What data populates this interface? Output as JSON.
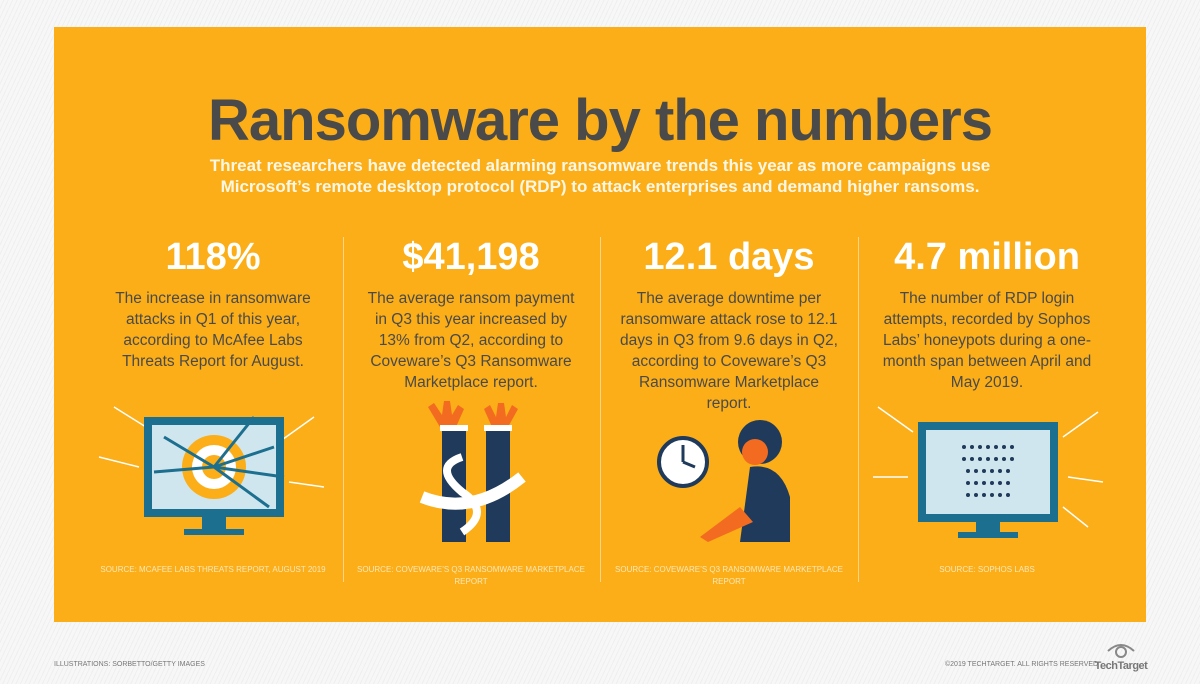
{
  "title": "Ransomware by the numbers",
  "subtitle": "Threat researchers have detected alarming ransomware trends this year as more campaigns use Microsoft’s remote desktop protocol (RDP) to attack enterprises and demand higher ransoms.",
  "colors": {
    "background": "#fbae17",
    "title": "#4a4a4a",
    "accent_blue": "#1d6f8f"
  },
  "stats": [
    {
      "value": "118%",
      "description": "The increase in ransomware attacks in Q1 of this year, according to McAfee Labs Threats Report for August.",
      "source": "Source: McAfee Labs Threats Report, August 2019",
      "icon": "monitor-target-arrows-icon"
    },
    {
      "value": "$41,198",
      "description": "The average ransom payment in Q3 this year increased by 13% from Q2, according to Coveware’s Q3 Ransomware Marketplace report.",
      "source": "Source: Coveware’s Q3 Ransomware Marketplace Report",
      "icon": "handcuffed-hands-dollar-icon"
    },
    {
      "value": "12.1 days",
      "description": "The average downtime per ransomware attack rose to 12.1 days in Q3 from 9.6 days in Q2, according to Coveware’s Q3 Ransomware Marketplace report.",
      "source": "Source: Coveware’s Q3 Ransomware Marketplace Report",
      "icon": "clock-waiting-person-icon"
    },
    {
      "value": "4.7 million",
      "description": "The number of RDP login attempts, recorded by Sophos Labs’ honeypots during a one-month span between April and May 2019.",
      "source": "Source: Sophos Labs",
      "icon": "monitor-password-dots-icon"
    }
  ],
  "footer": {
    "credit": "ILLUSTRATIONS: SORBETTO/GETTY IMAGES",
    "copyright": "©2019 TECHTARGET. ALL RIGHTS RESERVED",
    "logo": "TechTarget"
  }
}
